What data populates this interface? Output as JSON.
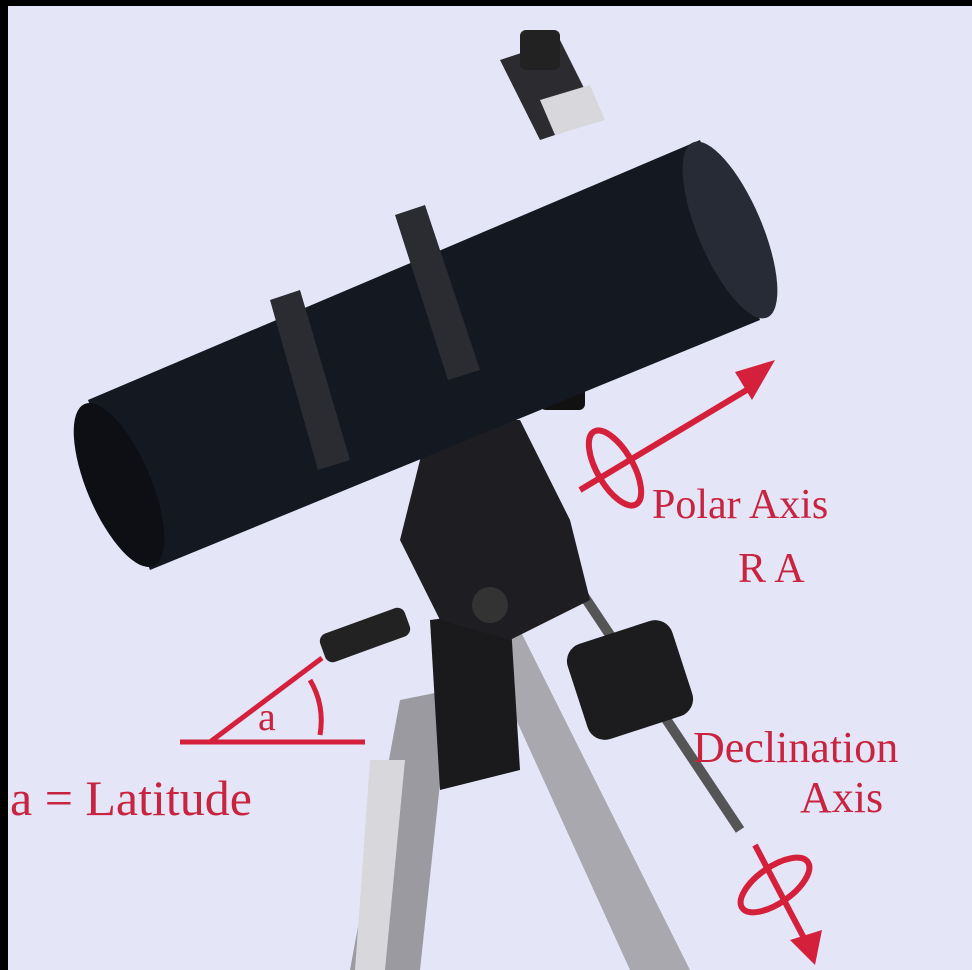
{
  "labels": {
    "polar_axis": "Polar Axis",
    "ra": "R A",
    "angle": "a",
    "latitude": "a = Latitude",
    "declination": "Declination",
    "declination_axis": "Axis"
  }
}
